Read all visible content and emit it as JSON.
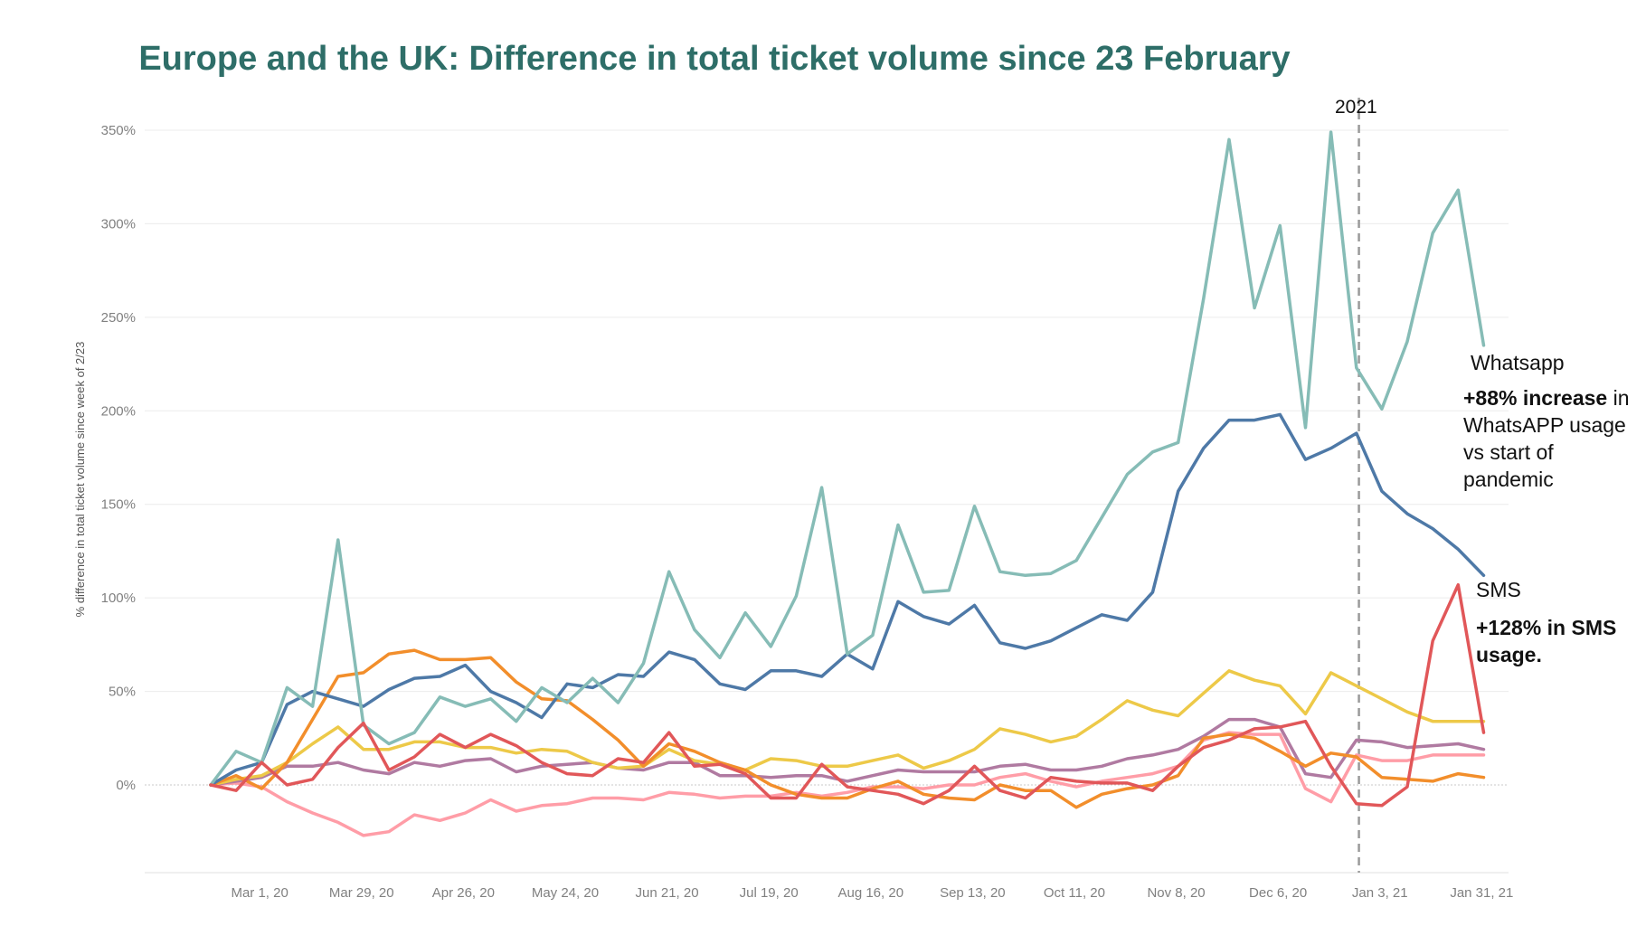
{
  "chart_data": {
    "type": "line",
    "title": "Europe and the UK: Difference in total ticket volume since 23 February",
    "ylabel": "% difference in total ticket volume since week of 2/23",
    "ylim": [
      -47,
      350
    ],
    "yticks": [
      0,
      50,
      100,
      150,
      200,
      250,
      300,
      350
    ],
    "ytick_labels": [
      "0%",
      "50%",
      "100%",
      "150%",
      "200%",
      "250%",
      "300%",
      "350%"
    ],
    "x_tick_labels": [
      "Mar 1, 20",
      "Mar 29, 20",
      "Apr 26, 20",
      "May 24, 20",
      "Jun 21, 20",
      "Jul 19, 20",
      "Aug 16, 20",
      "Sep 13, 20",
      "Oct 11, 20",
      "Nov 8, 20",
      "Dec 6, 20",
      "Jan 3, 21",
      "Jan 31, 21"
    ],
    "x_tick_weeks": [
      1,
      5,
      9,
      13,
      17,
      21,
      25,
      29,
      33,
      37,
      41,
      45,
      49
    ],
    "week_start": "Feb 23, 20",
    "grid": "horizontal",
    "reference_line": {
      "week": 45.1,
      "label": "2021",
      "style": "dashed"
    },
    "series": [
      {
        "name": "Whatsapp",
        "color": "#86bcb6",
        "values": [
          0,
          18,
          12,
          52,
          42,
          131,
          32,
          22,
          28,
          47,
          42,
          46,
          34,
          52,
          44,
          57,
          44,
          65,
          114,
          83,
          68,
          92,
          74,
          101,
          159,
          70,
          80,
          139,
          103,
          104,
          149,
          114,
          112,
          113,
          120,
          143,
          166,
          178,
          183,
          260,
          345,
          255,
          299,
          191,
          349,
          223,
          201,
          237,
          295,
          318,
          235
        ]
      },
      {
        "name": "SMS",
        "color": "#e15759",
        "values": [
          0,
          -3,
          12,
          0,
          3,
          20,
          33,
          8,
          15,
          27,
          20,
          27,
          21,
          12,
          6,
          5,
          14,
          12,
          28,
          10,
          11,
          6,
          -7,
          -7,
          11,
          -1,
          -3,
          -5,
          -10,
          -3,
          10,
          -3,
          -7,
          4,
          2,
          1,
          1,
          -3,
          10,
          20,
          24,
          30,
          31,
          34,
          10,
          -10,
          -11,
          -1,
          77,
          107,
          28
        ]
      },
      {
        "name": "",
        "color": "#4e79a7",
        "values": [
          0,
          8,
          12,
          43,
          50,
          46,
          42,
          51,
          57,
          58,
          64,
          50,
          44,
          36,
          54,
          52,
          59,
          58,
          71,
          67,
          54,
          51,
          61,
          61,
          58,
          70,
          62,
          98,
          90,
          86,
          96,
          76,
          73,
          77,
          84,
          91,
          88,
          103,
          157,
          180,
          195,
          195,
          198,
          174,
          180,
          188,
          157,
          145,
          137,
          126,
          112
        ]
      },
      {
        "name": "",
        "color": "#f28e2b",
        "values": [
          0,
          5,
          -2,
          12,
          35,
          58,
          60,
          70,
          72,
          67,
          67,
          68,
          55,
          46,
          45,
          35,
          24,
          10,
          22,
          18,
          12,
          8,
          0,
          -5,
          -7,
          -7,
          -2,
          2,
          -5,
          -7,
          -8,
          0,
          -3,
          -3,
          -12,
          -5,
          -2,
          0,
          5,
          25,
          27,
          25,
          18,
          10,
          17,
          15,
          4,
          3,
          2,
          6,
          4
        ]
      },
      {
        "name": "",
        "color": "#edc948",
        "values": [
          0,
          3,
          5,
          12,
          22,
          31,
          19,
          19,
          23,
          23,
          20,
          20,
          17,
          19,
          18,
          12,
          9,
          10,
          19,
          13,
          11,
          8,
          14,
          13,
          10,
          10,
          13,
          16,
          9,
          13,
          19,
          30,
          27,
          23,
          26,
          35,
          45,
          40,
          37,
          49,
          61,
          56,
          53,
          38,
          60,
          53,
          46,
          39,
          34,
          34,
          34
        ]
      },
      {
        "name": "",
        "color": "#b07aa1",
        "values": [
          0,
          2,
          4,
          10,
          10,
          12,
          8,
          6,
          12,
          10,
          13,
          14,
          7,
          10,
          11,
          12,
          9,
          8,
          12,
          12,
          5,
          5,
          4,
          5,
          5,
          2,
          5,
          8,
          7,
          7,
          7,
          10,
          11,
          8,
          8,
          10,
          14,
          16,
          19,
          26,
          35,
          35,
          31,
          6,
          4,
          24,
          23,
          20,
          21,
          22,
          19
        ]
      },
      {
        "name": "",
        "color": "#ff9da7",
        "values": [
          0,
          1,
          -1,
          -9,
          -15,
          -20,
          -27,
          -25,
          -16,
          -19,
          -15,
          -8,
          -14,
          -11,
          -10,
          -7,
          -7,
          -8,
          -4,
          -5,
          -7,
          -6,
          -6,
          -4,
          -6,
          -4,
          -1,
          -1,
          -2,
          0,
          0,
          4,
          6,
          2,
          -1,
          2,
          4,
          6,
          10,
          24,
          28,
          27,
          27,
          -2,
          -9,
          16,
          13,
          13,
          16,
          16,
          16
        ]
      }
    ]
  },
  "annotations": {
    "year_marker": "2021",
    "whatsapp_name": "Whatsapp",
    "whatsapp_bold": "+88% increase",
    "whatsapp_rest": " in WhatsAPP usage vs start of pandemic",
    "sms_name": "SMS",
    "sms_note": "+128% in SMS usage."
  }
}
